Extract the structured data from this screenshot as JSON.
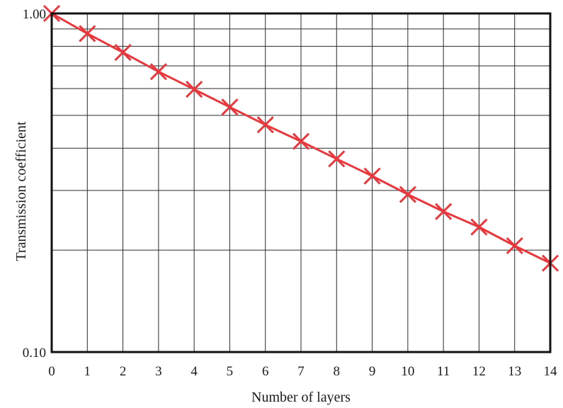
{
  "chart_data": {
    "type": "line",
    "title": "",
    "xlabel": "Number of layers",
    "ylabel": "Transmission coefficient",
    "x_scale": "linear",
    "y_scale": "log",
    "xlim": [
      0,
      14
    ],
    "ylim": [
      0.1,
      1.0
    ],
    "x_ticks": [
      "0",
      "1",
      "2",
      "3",
      "4",
      "5",
      "6",
      "7",
      "8",
      "9",
      "10",
      "11",
      "12",
      "13",
      "14"
    ],
    "y_ticks": [
      "1.00",
      "0.10"
    ],
    "grid": true,
    "legend": "none",
    "series": [
      {
        "color": "#e8383d",
        "marker": "x",
        "x": [
          0,
          1,
          2,
          3,
          4,
          5,
          6,
          7,
          8,
          9,
          10,
          11,
          12,
          13,
          14
        ],
        "y": [
          1.0,
          0.872,
          0.767,
          0.673,
          0.597,
          0.529,
          0.469,
          0.419,
          0.372,
          0.331,
          0.292,
          0.26,
          0.234,
          0.206,
          0.183
        ]
      }
    ]
  }
}
